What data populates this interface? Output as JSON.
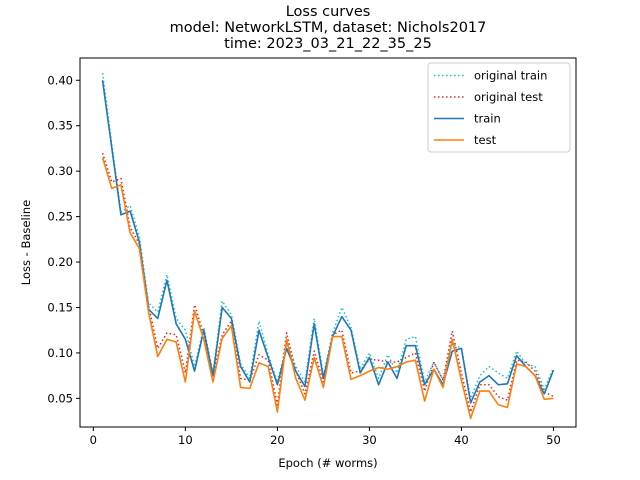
{
  "chart_data": {
    "type": "line",
    "title_lines": [
      "Loss curves",
      "model: NetworkLSTM, dataset: Nichols2017",
      "time: 2023_03_21_22_35_25"
    ],
    "xlabel": "Epoch (# worms)",
    "ylabel": "Loss - Baseline",
    "xlim": [
      -1.45,
      52.45
    ],
    "ylim": [
      0.0185,
      0.4245
    ],
    "xticks": [
      0,
      10,
      20,
      30,
      40,
      50
    ],
    "yticks": [
      0.05,
      0.1,
      0.15,
      0.2,
      0.25,
      0.3,
      0.35,
      0.4
    ],
    "ytick_labels": [
      "0.05",
      "0.10",
      "0.15",
      "0.20",
      "0.25",
      "0.30",
      "0.35",
      "0.40"
    ],
    "grid": false,
    "legend_position": "top-right",
    "x": [
      1,
      2,
      3,
      4,
      5,
      6,
      7,
      8,
      9,
      10,
      11,
      12,
      13,
      14,
      15,
      16,
      17,
      18,
      19,
      20,
      21,
      22,
      23,
      24,
      25,
      26,
      27,
      28,
      29,
      30,
      31,
      32,
      33,
      34,
      35,
      36,
      37,
      38,
      39,
      40,
      41,
      42,
      43,
      44,
      45,
      46,
      47,
      48,
      49,
      50
    ],
    "series": [
      {
        "name": "original train",
        "color": "#17becf",
        "style": "dotted",
        "values": [
          0.408,
          0.33,
          0.255,
          0.262,
          0.228,
          0.155,
          0.145,
          0.186,
          0.138,
          0.125,
          0.085,
          0.128,
          0.078,
          0.157,
          0.142,
          0.088,
          0.072,
          0.135,
          0.098,
          0.068,
          0.108,
          0.085,
          0.068,
          0.138,
          0.075,
          0.122,
          0.15,
          0.128,
          0.082,
          0.1,
          0.072,
          0.098,
          0.078,
          0.115,
          0.118,
          0.068,
          0.09,
          0.07,
          0.11,
          0.105,
          0.05,
          0.075,
          0.085,
          0.078,
          0.072,
          0.102,
          0.088,
          0.085,
          0.06,
          0.083
        ]
      },
      {
        "name": "original test",
        "color": "#d62728",
        "style": "dotted",
        "values": [
          0.32,
          0.288,
          0.292,
          0.238,
          0.22,
          0.152,
          0.105,
          0.122,
          0.12,
          0.078,
          0.153,
          0.12,
          0.075,
          0.12,
          0.135,
          0.072,
          0.07,
          0.098,
          0.092,
          0.043,
          0.122,
          0.08,
          0.055,
          0.102,
          0.068,
          0.12,
          0.125,
          0.078,
          0.08,
          0.093,
          0.092,
          0.09,
          0.09,
          0.095,
          0.1,
          0.058,
          0.09,
          0.07,
          0.124,
          0.078,
          0.035,
          0.065,
          0.065,
          0.052,
          0.048,
          0.092,
          0.09,
          0.08,
          0.057,
          0.052
        ]
      },
      {
        "name": "train",
        "color": "#1f77b4",
        "style": "solid",
        "values": [
          0.4,
          0.326,
          0.252,
          0.256,
          0.222,
          0.148,
          0.138,
          0.18,
          0.132,
          0.115,
          0.08,
          0.125,
          0.075,
          0.15,
          0.138,
          0.085,
          0.068,
          0.125,
          0.095,
          0.065,
          0.105,
          0.08,
          0.063,
          0.132,
          0.072,
          0.118,
          0.14,
          0.125,
          0.078,
          0.095,
          0.065,
          0.09,
          0.072,
          0.108,
          0.108,
          0.065,
          0.082,
          0.065,
          0.102,
          0.105,
          0.045,
          0.068,
          0.075,
          0.065,
          0.066,
          0.097,
          0.085,
          0.075,
          0.055,
          0.081
        ]
      },
      {
        "name": "test",
        "color": "#ff7f0e",
        "style": "solid",
        "values": [
          0.315,
          0.281,
          0.285,
          0.232,
          0.215,
          0.145,
          0.096,
          0.115,
          0.112,
          0.068,
          0.146,
          0.115,
          0.068,
          0.116,
          0.13,
          0.062,
          0.061,
          0.089,
          0.085,
          0.035,
          0.115,
          0.072,
          0.048,
          0.095,
          0.062,
          0.118,
          0.118,
          0.071,
          0.075,
          0.08,
          0.084,
          0.082,
          0.085,
          0.09,
          0.092,
          0.047,
          0.082,
          0.062,
          0.115,
          0.07,
          0.028,
          0.058,
          0.058,
          0.043,
          0.04,
          0.088,
          0.085,
          0.075,
          0.049,
          0.05
        ]
      }
    ]
  }
}
